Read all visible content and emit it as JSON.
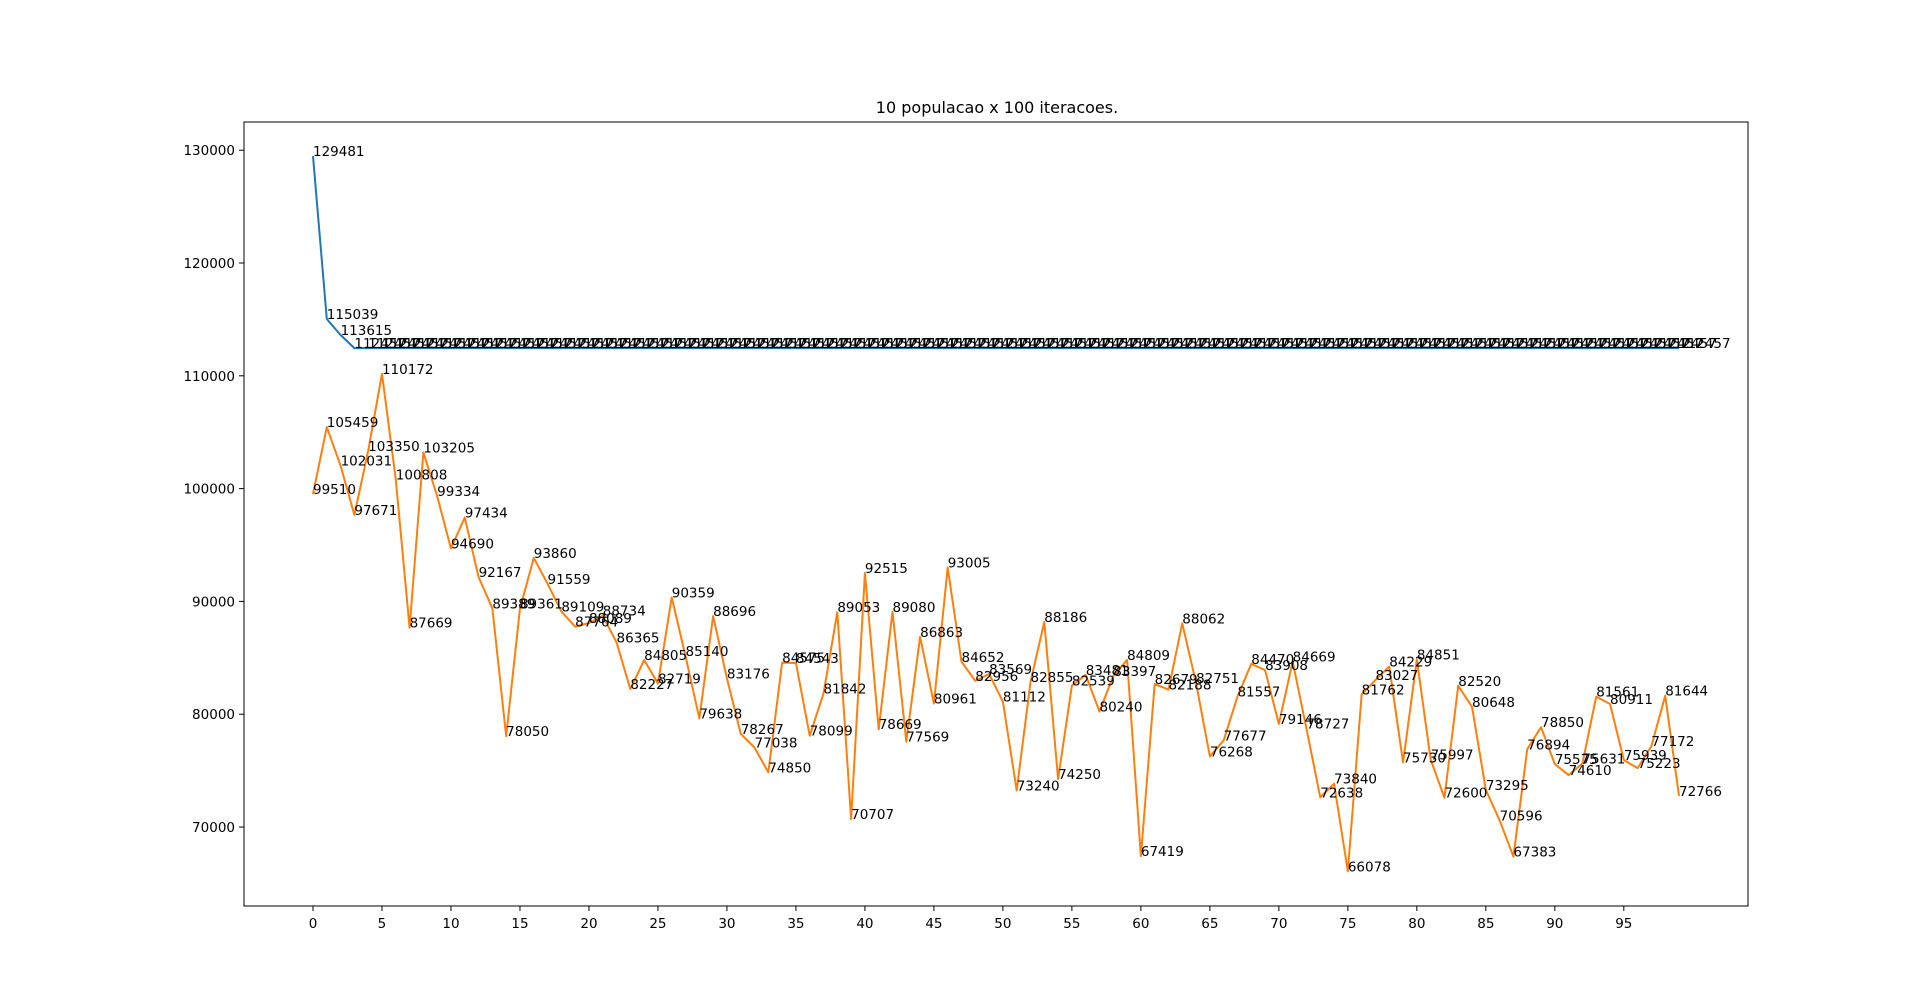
{
  "chart_data": {
    "type": "line",
    "title": "10 populacao x 100 iteracoes.",
    "xlabel": "",
    "ylabel": "",
    "xlim": [
      -5,
      104
    ],
    "ylim": [
      63000,
      132500
    ],
    "x_ticks": [
      0,
      5,
      10,
      15,
      20,
      25,
      30,
      35,
      40,
      45,
      50,
      55,
      60,
      65,
      70,
      75,
      80,
      85,
      90,
      95
    ],
    "y_ticks": [
      70000,
      80000,
      90000,
      100000,
      110000,
      120000,
      130000
    ],
    "grid": false,
    "legend": "none",
    "x": [
      0,
      1,
      2,
      3,
      4,
      5,
      6,
      7,
      8,
      9,
      10,
      11,
      12,
      13,
      14,
      15,
      16,
      17,
      18,
      19,
      20,
      21,
      22,
      23,
      24,
      25,
      26,
      27,
      28,
      29,
      30,
      31,
      32,
      33,
      34,
      35,
      36,
      37,
      38,
      39,
      40,
      41,
      42,
      43,
      44,
      45,
      46,
      47,
      48,
      49,
      50,
      51,
      52,
      53,
      54,
      55,
      56,
      57,
      58,
      59,
      60,
      61,
      62,
      63,
      64,
      65,
      66,
      67,
      68,
      69,
      70,
      71,
      72,
      73,
      74,
      75,
      76,
      77,
      78,
      79,
      80,
      81,
      82,
      83,
      84,
      85,
      86,
      87,
      88,
      89,
      90,
      91,
      92,
      93,
      94,
      95,
      96,
      97,
      98,
      99
    ],
    "series": [
      {
        "color": "#1f77b4",
        "values": [
          129481,
          115039,
          113615,
          112457,
          112457,
          112457,
          112457,
          112457,
          112457,
          112457,
          112457,
          112457,
          112457,
          112457,
          112457,
          112457,
          112457,
          112457,
          112457,
          112457,
          112457,
          112457,
          112457,
          112457,
          112457,
          112457,
          112457,
          112457,
          112457,
          112457,
          112457,
          112457,
          112457,
          112457,
          112457,
          112457,
          112457,
          112457,
          112457,
          112457,
          112457,
          112457,
          112457,
          112457,
          112457,
          112457,
          112457,
          112457,
          112457,
          112457,
          112457,
          112457,
          112457,
          112457,
          112457,
          112457,
          112457,
          112457,
          112457,
          112457,
          112457,
          112457,
          112457,
          112457,
          112457,
          112457,
          112457,
          112457,
          112457,
          112457,
          112457,
          112457,
          112457,
          112457,
          112457,
          112457,
          112457,
          112457,
          112457,
          112457,
          112457,
          112457,
          112457,
          112457,
          112457,
          112457,
          112457,
          112457,
          112457,
          112457,
          112457,
          112457,
          112457,
          112457,
          112457,
          112457,
          112457,
          112457,
          112457,
          112457
        ]
      },
      {
        "color": "#ff7f0e",
        "values": [
          99510,
          105459,
          102031,
          97671,
          103350,
          110172,
          100808,
          87669,
          103205,
          99334,
          94690,
          97434,
          92167,
          89389,
          78050,
          89361,
          93860,
          91559,
          89109,
          87764,
          88089,
          88734,
          86365,
          82227,
          84805,
          82719,
          90359,
          85140,
          79638,
          88696,
          83176,
          78267,
          77038,
          74850,
          84575,
          84543,
          78099,
          81842,
          89053,
          70707,
          92515,
          78669,
          89080,
          77569,
          86863,
          80961,
          93005,
          84652,
          82956,
          83569,
          81112,
          73240,
          82855,
          88186,
          74250,
          82539,
          83481,
          80240,
          83397,
          84809,
          67419,
          82679,
          82188,
          88062,
          82751,
          76268,
          77677,
          81557,
          84470,
          83908,
          79146,
          84669,
          78727,
          72638,
          73840,
          66078,
          81762,
          83027,
          84229,
          75730,
          84851,
          75997,
          72600,
          82520,
          80648,
          73295,
          70596,
          67383,
          76894,
          78850,
          75575,
          74610,
          75631,
          81561,
          80911,
          75939,
          75223,
          77172,
          81644,
          72766
        ]
      }
    ]
  }
}
